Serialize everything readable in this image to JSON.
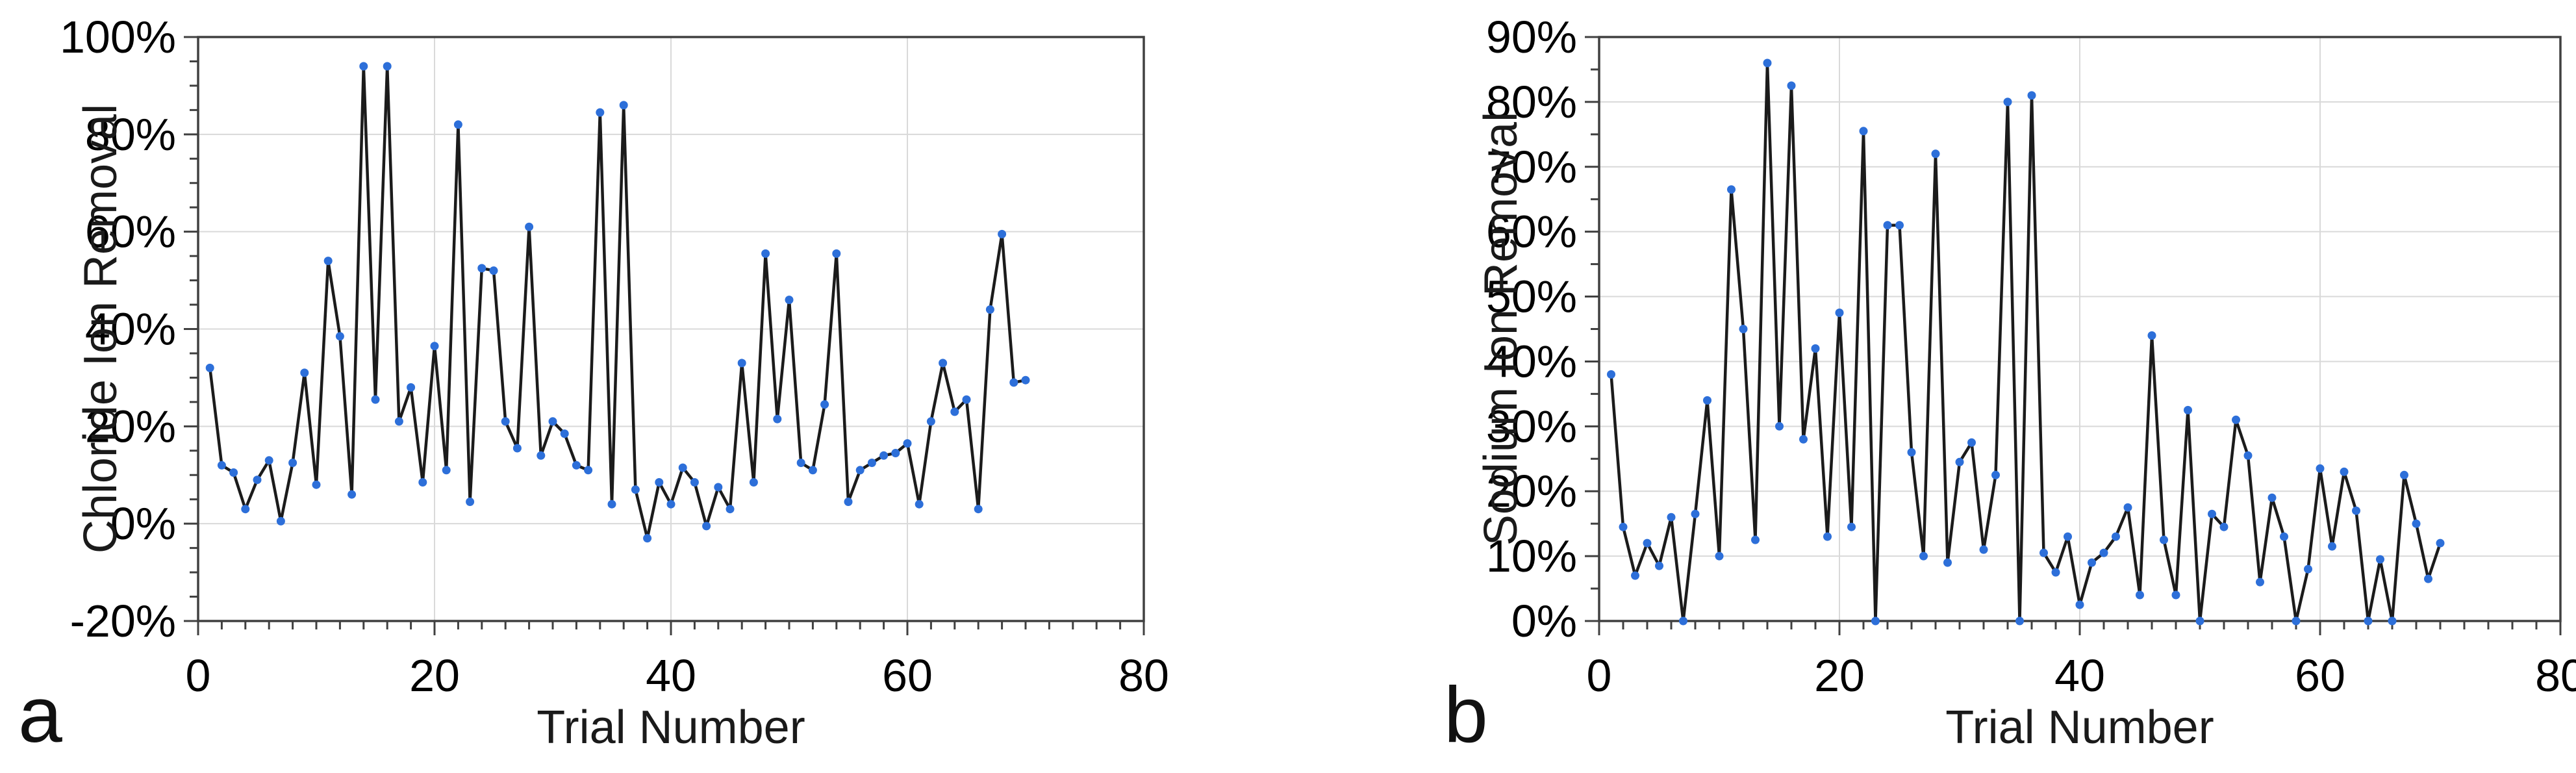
{
  "page": {
    "background": "#ffffff"
  },
  "panels": [
    {
      "letter": "a"
    },
    {
      "letter": "b"
    }
  ],
  "chart_data": [
    {
      "type": "line",
      "title": "",
      "xlabel": "Trial Number",
      "ylabel": "Chloride Ion Removal",
      "x_start": 1,
      "x_step": 1,
      "values": [
        32,
        12,
        10.5,
        3,
        9,
        13,
        0.5,
        12.5,
        31,
        8,
        54,
        38.5,
        6,
        94,
        25.5,
        94,
        21,
        28,
        8.5,
        36.5,
        11,
        82,
        4.5,
        52.5,
        52,
        21,
        15.5,
        61,
        14,
        21,
        18.5,
        12,
        11,
        84.5,
        4,
        86,
        7,
        -3,
        8.5,
        4,
        11.5,
        8.5,
        -0.5,
        7.5,
        3,
        33,
        8.5,
        55.5,
        21.5,
        46,
        12.5,
        11,
        24.5,
        55.5,
        4.5,
        11,
        12.5,
        14,
        14.5,
        16.5,
        4,
        21,
        33,
        23,
        25.5,
        3,
        44,
        59.5,
        29,
        29.5
      ],
      "xlim": [
        0,
        80
      ],
      "ylim": [
        -20,
        100
      ],
      "x_major_step": 20,
      "x_minor_step": 2,
      "y_major_step": 20,
      "y_minor_step": 5,
      "y_tick_labels": [
        "-20%",
        "0%",
        "20%",
        "40%",
        "60%",
        "80%",
        "100%"
      ],
      "x_tick_labels": [
        "0",
        "20",
        "40",
        "60",
        "80"
      ],
      "grid": true,
      "legend_position": "none",
      "line_color": "#1b1b1b",
      "marker_color": "#2d6fd9",
      "axis_color": "#404040",
      "grid_color": "#d9d9d9",
      "tick_label_color": "#000000"
    },
    {
      "type": "line",
      "title": "",
      "xlabel": "Trial Number",
      "ylabel": "Sodium Ion Removal",
      "x_start": 1,
      "x_step": 1,
      "values": [
        38,
        14.5,
        7,
        12,
        8.5,
        16,
        0,
        16.5,
        34,
        10,
        66.5,
        45,
        12.5,
        86,
        30,
        82.5,
        28,
        42,
        13,
        47.5,
        14.5,
        75.5,
        0,
        61,
        61,
        26,
        10,
        72,
        9,
        24.5,
        27.5,
        11,
        22.5,
        80,
        0,
        81,
        10.5,
        7.5,
        13,
        2.5,
        9,
        10.5,
        13,
        17.5,
        4,
        44,
        12.5,
        4,
        32.5,
        0,
        16.5,
        14.5,
        31,
        25.5,
        6,
        19,
        13,
        0,
        8,
        23.5,
        11.5,
        23,
        17,
        0,
        9.5,
        0,
        22.5,
        15,
        6.5,
        12
      ],
      "xlim": [
        0,
        80
      ],
      "ylim": [
        0,
        90
      ],
      "x_major_step": 20,
      "x_minor_step": 2,
      "y_major_step": 10,
      "y_minor_step": 5,
      "y_tick_labels": [
        "0%",
        "10%",
        "20%",
        "30%",
        "40%",
        "50%",
        "60%",
        "70%",
        "80%",
        "90%"
      ],
      "x_tick_labels": [
        "0",
        "20",
        "40",
        "60",
        "80"
      ],
      "grid": true,
      "legend_position": "none",
      "line_color": "#1b1b1b",
      "marker_color": "#2d6fd9",
      "axis_color": "#404040",
      "grid_color": "#d9d9d9",
      "tick_label_color": "#000000"
    }
  ]
}
